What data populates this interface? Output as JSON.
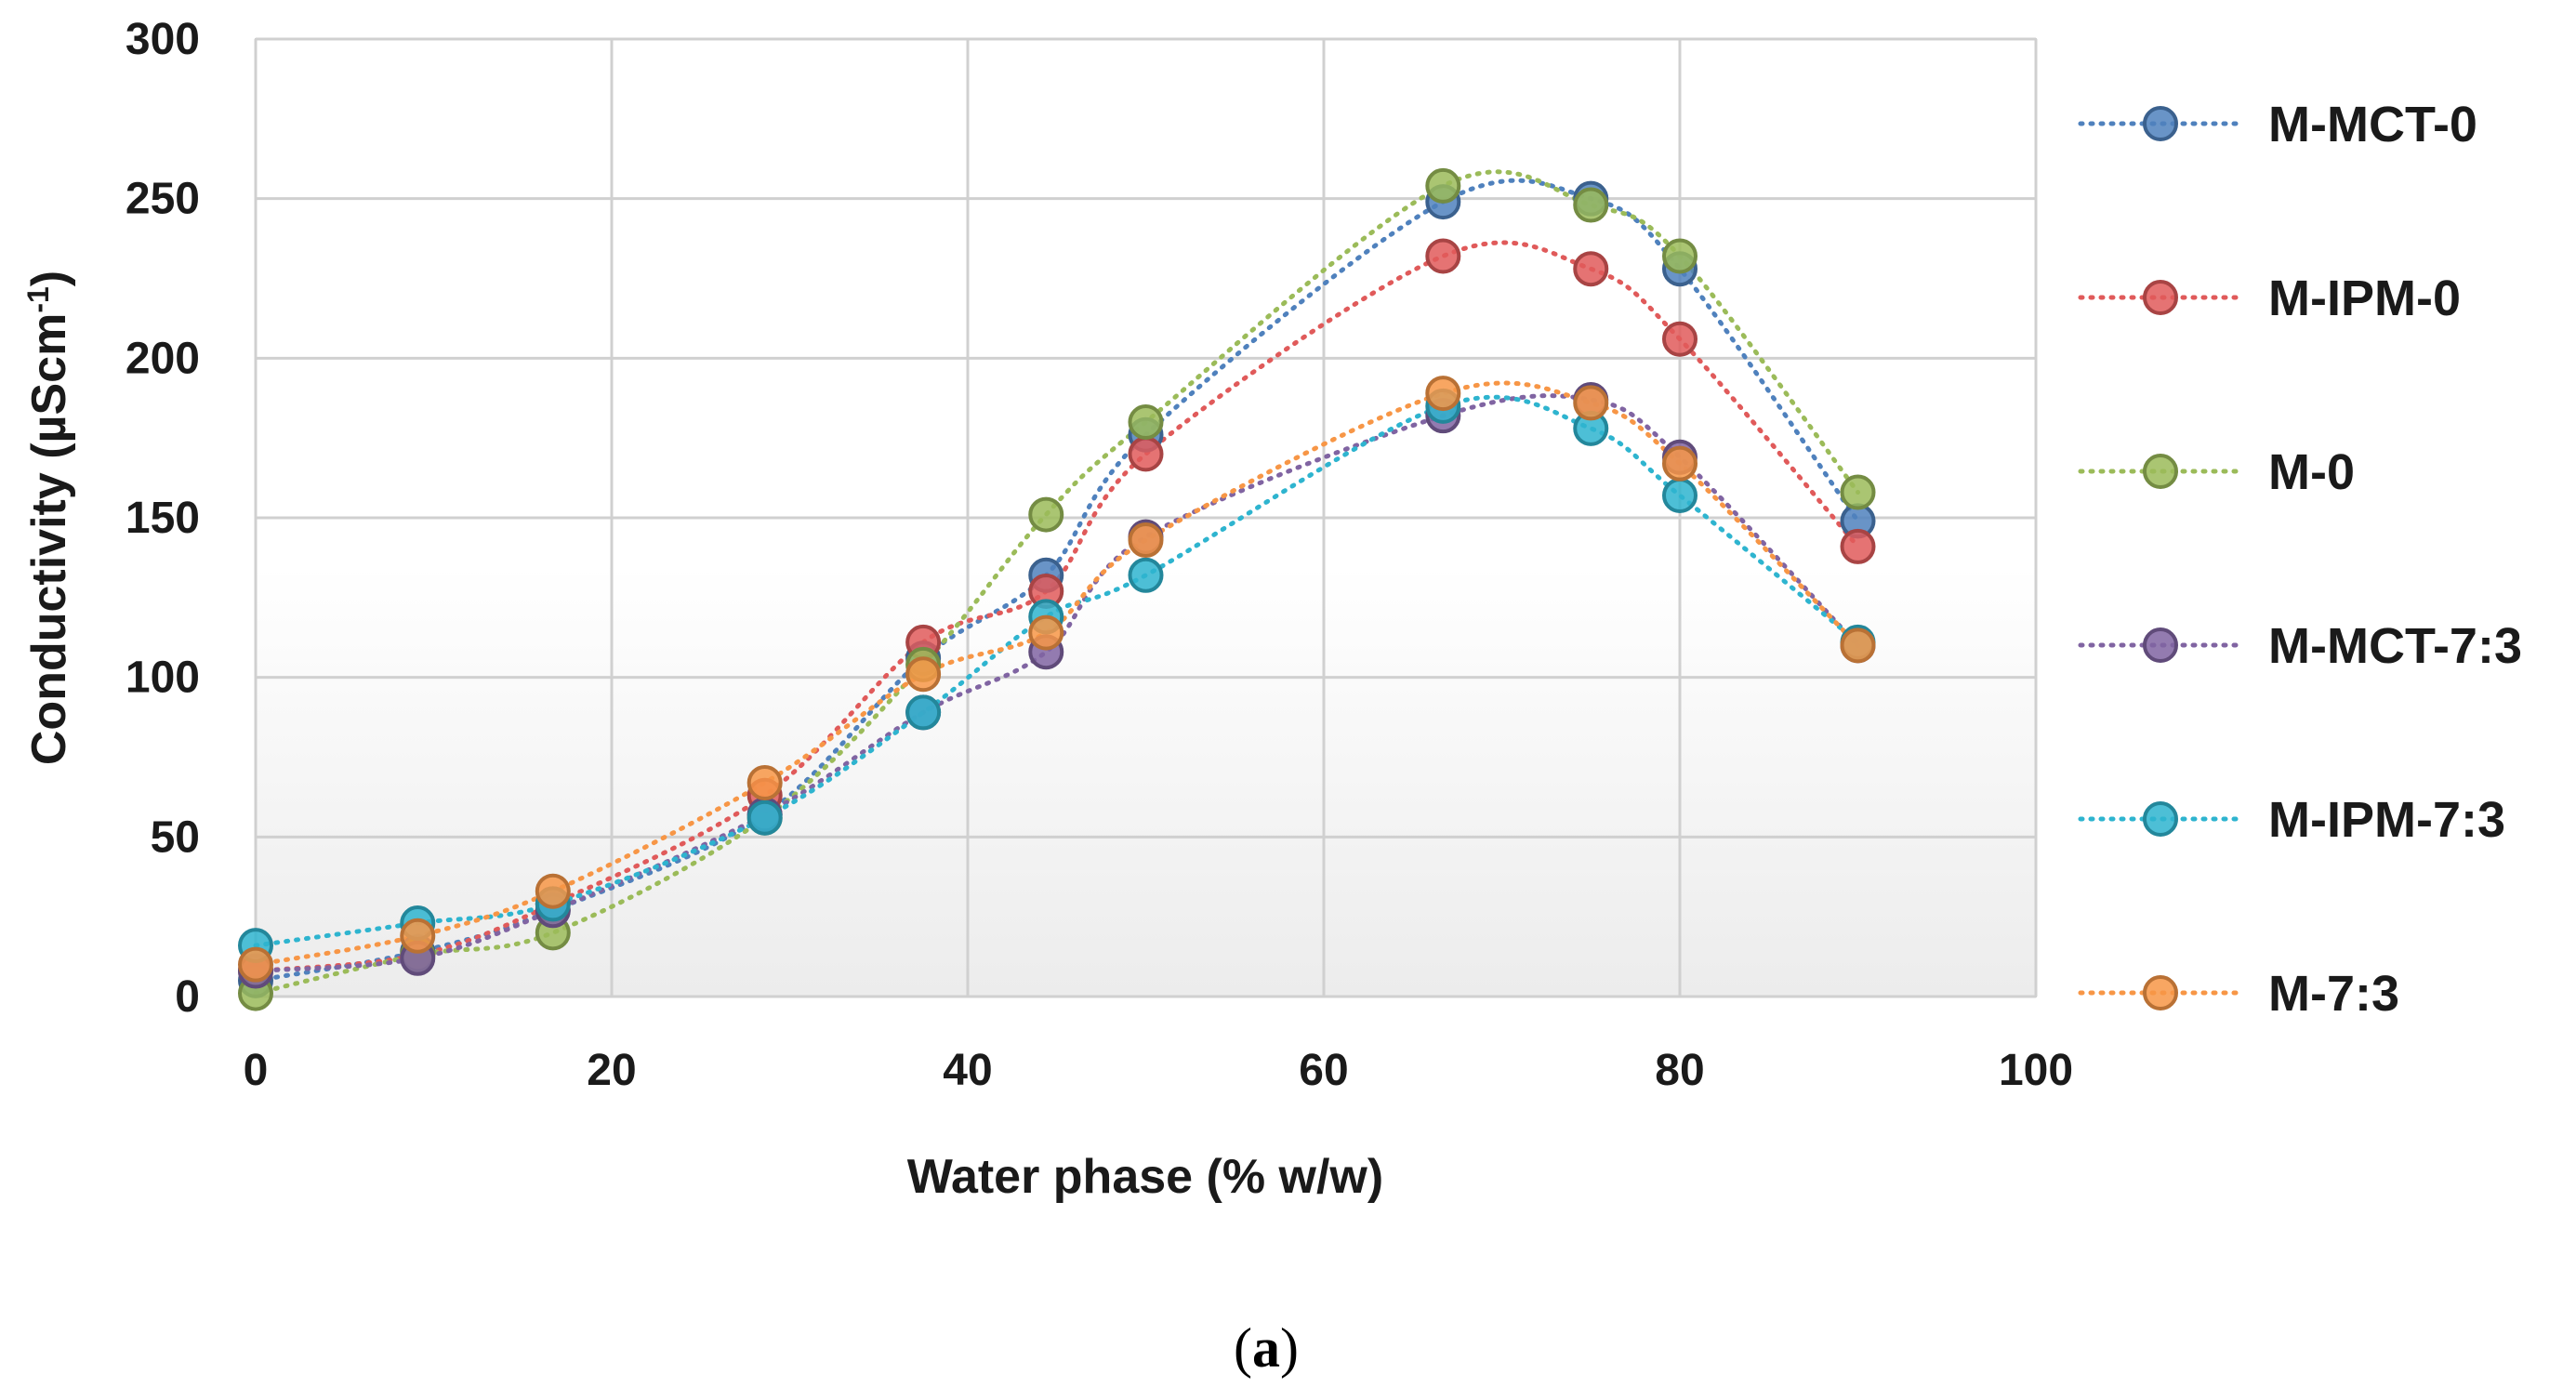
{
  "chart_data": {
    "type": "line",
    "title": "",
    "xlabel": "Water phase (% w/w)",
    "ylabel": "Conductivity (µScm⁻¹)",
    "ylabel_parts": {
      "main": "Conductivity (µScm",
      "sup": "-1",
      "close": ")"
    },
    "xlim": [
      0,
      100
    ],
    "ylim": [
      0,
      300
    ],
    "x_ticks": [
      0,
      20,
      40,
      60,
      80,
      100
    ],
    "y_ticks": [
      0,
      50,
      100,
      150,
      200,
      250,
      300
    ],
    "grid": true,
    "legend_position": "right",
    "line_style": "dotted-smoothed",
    "x": [
      0,
      9.1,
      16.7,
      28.6,
      37.5,
      44.4,
      50,
      66.7,
      75,
      80,
      90
    ],
    "series": [
      {
        "name": "M-MCT-0",
        "color": "#4f81bd",
        "values": [
          5,
          14,
          27,
          57,
          106,
          132,
          176,
          249,
          250,
          228,
          149
        ]
      },
      {
        "name": "M-IPM-0",
        "color": "#e05a5a",
        "values": [
          8,
          13,
          29,
          63,
          111,
          127,
          170,
          232,
          228,
          206,
          141
        ]
      },
      {
        "name": "M-0",
        "color": "#9bbb59",
        "values": [
          1,
          13,
          20,
          56,
          104,
          151,
          180,
          254,
          248,
          232,
          158
        ]
      },
      {
        "name": "M-MCT-7:3",
        "color": "#8064a2",
        "values": [
          8,
          12,
          27,
          57,
          89,
          108,
          144,
          182,
          187,
          169,
          110
        ]
      },
      {
        "name": "M-IPM-7:3",
        "color": "#2eb4cf",
        "values": [
          16,
          23,
          29,
          56,
          89,
          119,
          132,
          185,
          178,
          157,
          111
        ]
      },
      {
        "name": "M-7:3",
        "color": "#f79646",
        "values": [
          10,
          19,
          33,
          67,
          101,
          114,
          143,
          189,
          186,
          167,
          110
        ]
      }
    ]
  },
  "caption": {
    "open": "(",
    "letter": "a",
    "close": ")"
  }
}
